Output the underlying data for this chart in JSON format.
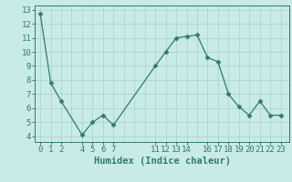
{
  "x": [
    0,
    1,
    2,
    4,
    5,
    6,
    7,
    11,
    12,
    13,
    14,
    15,
    16,
    17,
    18,
    19,
    20,
    21,
    22,
    23
  ],
  "y": [
    12.7,
    7.8,
    6.5,
    4.1,
    5.0,
    5.5,
    4.8,
    9.0,
    10.0,
    11.0,
    11.1,
    11.2,
    9.6,
    9.3,
    7.0,
    6.1,
    5.5,
    6.5,
    5.5,
    5.5
  ],
  "line_color": "#2e7d6e",
  "marker": "D",
  "marker_size": 2.5,
  "bg_color": "#c8eae8",
  "grid_color": "#b0d4d0",
  "xlabel": "Humidex (Indice chaleur)",
  "xticks": [
    0,
    1,
    2,
    4,
    5,
    6,
    7,
    11,
    12,
    13,
    14,
    16,
    17,
    18,
    19,
    20,
    21,
    22,
    23
  ],
  "yticks": [
    4,
    5,
    6,
    7,
    8,
    9,
    10,
    11,
    12,
    13
  ],
  "xlim": [
    -0.5,
    23.8
  ],
  "ylim": [
    3.6,
    13.3
  ],
  "tick_label_fontsize": 6.5,
  "xlabel_fontsize": 7.5
}
